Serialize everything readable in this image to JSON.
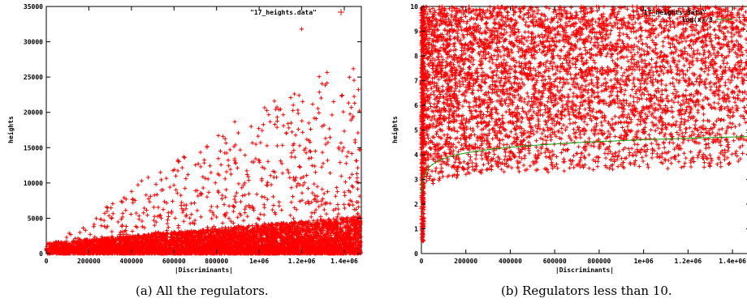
{
  "chart_data": [
    {
      "type": "scatter",
      "legend": "\"17_heights.data\"",
      "legend_position": "top-right",
      "xlabel": "|Discriminants|",
      "ylabel": "heights",
      "xlim": [
        0,
        1480000
      ],
      "ylim": [
        0,
        35000
      ],
      "x_ticks": [
        0,
        200000,
        400000,
        600000,
        800000,
        1000000,
        1200000,
        1400000
      ],
      "x_tick_labels": [
        "0",
        "200000",
        "400000",
        "600000",
        "800000",
        "1e+06",
        "1.2e+06",
        "1.4e+06"
      ],
      "y_ticks": [
        0,
        5000,
        10000,
        15000,
        20000,
        25000,
        30000,
        35000
      ],
      "y_tick_labels": [
        "0",
        "5000",
        "10000",
        "15000",
        "20000",
        "25000",
        "30000",
        "35000"
      ],
      "series_color": "#ff0000",
      "max_point": [
        1200000,
        31800
      ],
      "upper_envelope": [
        [
          0,
          1000
        ],
        [
          200000,
          5000
        ],
        [
          400000,
          9500
        ],
        [
          600000,
          13000
        ],
        [
          800000,
          17000
        ],
        [
          1000000,
          21000
        ],
        [
          1200000,
          24000
        ],
        [
          1400000,
          27000
        ]
      ],
      "caption": "(a) All the regulators."
    },
    {
      "type": "scatter",
      "legend": [
        "\"17_heights.data\"",
        "log(x)/3"
      ],
      "legend_position": "top-right",
      "xlabel": "|Discriminants|",
      "ylabel": "heights",
      "xlim": [
        0,
        1480000
      ],
      "ylim": [
        0,
        10
      ],
      "x_ticks": [
        0,
        200000,
        400000,
        600000,
        800000,
        1000000,
        1200000,
        1400000
      ],
      "x_tick_labels": [
        "0",
        "200000",
        "400000",
        "600000",
        "800000",
        "1e+06",
        "1.2e+06",
        "1.4e+06"
      ],
      "y_ticks": [
        0,
        1,
        2,
        3,
        4,
        5,
        6,
        7,
        8,
        9,
        10
      ],
      "y_tick_labels": [
        "0",
        "1",
        "2",
        "3",
        "4",
        "5",
        "6",
        "7",
        "8",
        "9",
        "10"
      ],
      "series": [
        {
          "name": "\"17_heights.data\"",
          "color": "#ff0000",
          "style": "points"
        },
        {
          "name": "log(x)/3",
          "color": "#00a000",
          "style": "line",
          "x": [
            1000,
            10000,
            100000,
            500000,
            1000000,
            1480000
          ],
          "y": [
            2.3,
            3.07,
            3.84,
            4.37,
            4.61,
            4.74
          ]
        }
      ],
      "lower_envelope": [
        [
          20000,
          2.6
        ],
        [
          200000,
          3.2
        ],
        [
          600000,
          3.3
        ],
        [
          1000000,
          3.4
        ],
        [
          1400000,
          3.5
        ]
      ],
      "caption": "(b) Regulators less than 10."
    }
  ]
}
